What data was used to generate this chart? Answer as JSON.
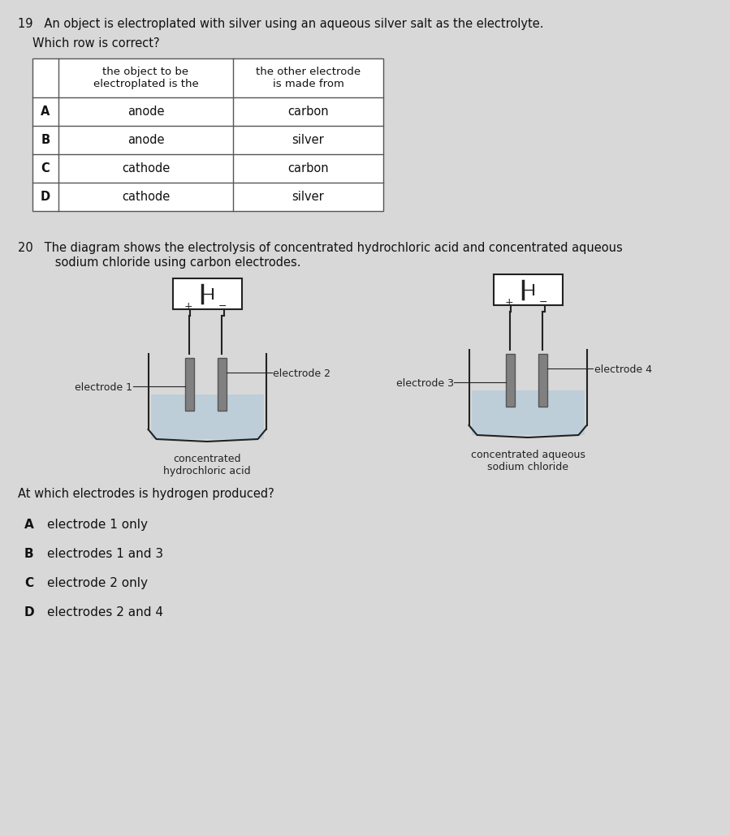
{
  "bg_color": "#d8d8d8",
  "paper_color": "#f0f0f0",
  "q19_text": "19   An object is electroplated with silver using an aqueous silver salt as the electrolyte.",
  "q19_sub": "Which row is correct?",
  "table_headers": [
    "",
    "the object to be\nelectroplated is the",
    "the other electrode\nis made from"
  ],
  "table_rows": [
    [
      "A",
      "anode",
      "carbon"
    ],
    [
      "B",
      "anode",
      "silver"
    ],
    [
      "C",
      "cathode",
      "carbon"
    ],
    [
      "D",
      "cathode",
      "silver"
    ]
  ],
  "q20_line1": "20   The diagram shows the electrolysis of concentrated hydrochloric acid and concentrated aqueous",
  "q20_line2": "      sodium chloride using carbon electrodes.",
  "mcq_label": "At which electrodes is hydrogen produced?",
  "options": [
    [
      "A",
      "electrode 1 only"
    ],
    [
      "B",
      "electrodes 1 and 3"
    ],
    [
      "C",
      "electrode 2 only"
    ],
    [
      "D",
      "electrodes 2 and 4"
    ]
  ],
  "electrode_color": "#808080",
  "liquid_color": "#b8ccd8",
  "line_color": "#222222",
  "text_color": "#111111"
}
